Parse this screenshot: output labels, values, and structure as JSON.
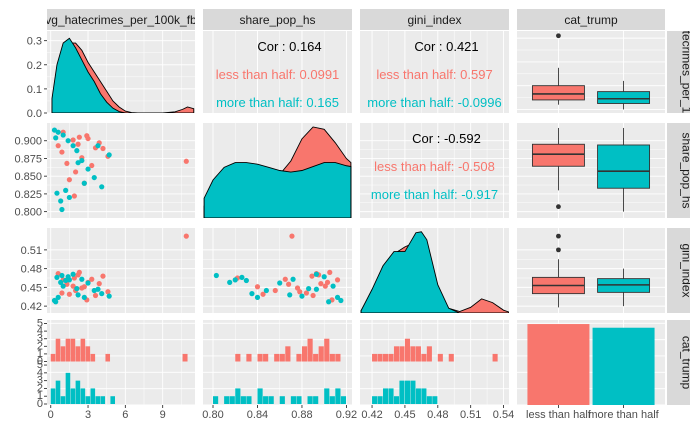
{
  "colors": {
    "less": "#F8766D",
    "more": "#00BFC4",
    "panel_bg": "#EBEBEB",
    "strip_bg": "#D9D9D9",
    "grid": "#FFFFFF"
  },
  "chart_data": {
    "type": "pairs",
    "variables": [
      "avg_hatecrimes_per_100k_fbi",
      "share_pop_hs",
      "gini_index",
      "cat_trump"
    ],
    "strip_labels": {
      "top": [
        "vg_hatecrimes_per_100k_fb",
        "share_pop_hs",
        "gini_index",
        "cat_trump"
      ],
      "right": [
        "tecrimes_per_1",
        "share_pop_hs",
        "gini_index",
        "cat_trump"
      ]
    },
    "groups": [
      "less than half",
      "more than half"
    ],
    "axes": {
      "hate": {
        "range": [
          -0.3,
          11.6
        ],
        "ticks": [
          0,
          3,
          6,
          9
        ],
        "ticklabels": [
          "0",
          "3",
          "6",
          "9"
        ]
      },
      "hs": {
        "range": [
          0.791,
          0.925
        ],
        "ticks": [
          0.8,
          0.84,
          0.88,
          0.92
        ],
        "ticklabels": [
          "0.80",
          "0.84",
          "0.88",
          "0.92"
        ],
        "yticks": [
          0.8,
          0.825,
          0.85,
          0.875,
          0.9
        ],
        "yticklabels": [
          "0.800",
          "0.825",
          "0.850",
          "0.875",
          "0.900"
        ]
      },
      "gini": {
        "range": [
          0.409,
          0.545
        ],
        "ticks": [
          0.42,
          0.45,
          0.48,
          0.51,
          0.54
        ],
        "ticklabels": [
          "0.42",
          "0.45",
          "0.48",
          "0.51",
          "0.54"
        ],
        "yticks": [
          0.42,
          0.45,
          0.48,
          0.51
        ],
        "yticklabels": [
          "0.42",
          "0.45",
          "0.48",
          "0.51"
        ]
      },
      "density_hate": {
        "range": [
          0,
          0.34
        ],
        "ticks": [
          0,
          0.1,
          0.2,
          0.3
        ],
        "ticklabels": [
          "0.0",
          "0.1",
          "0.2",
          "0.3"
        ]
      },
      "count": {
        "range": [
          0,
          5.2
        ],
        "ticks": [
          0,
          1,
          2,
          3,
          4,
          5
        ],
        "ticklabels": [
          "0",
          "1",
          "2",
          "3",
          "4",
          "5"
        ]
      }
    },
    "correlations": {
      "hate_hs": {
        "overall": "Cor : 0.164",
        "less": "less than half: 0.0991",
        "more": "more than half: 0.165"
      },
      "hate_gini": {
        "overall": "Cor : 0.421",
        "less": "less than half: 0.597",
        "more": "more than half: -0.0996"
      },
      "hs_gini": {
        "overall": "Cor : -0.592",
        "less": "less than half: -0.508",
        "more": "more than half: -0.917"
      }
    },
    "density": {
      "hate": {
        "less": {
          "x": [
            0.1,
            0.5,
            1.0,
            1.5,
            2.0,
            2.5,
            3.0,
            3.5,
            4.0,
            4.5,
            5.0,
            5.5,
            6.0,
            6.5,
            7.0,
            8.0,
            9.0,
            10.0,
            10.6,
            11.0,
            11.5
          ],
          "y": [
            0.02,
            0.12,
            0.23,
            0.29,
            0.29,
            0.26,
            0.21,
            0.17,
            0.13,
            0.09,
            0.05,
            0.025,
            0.008,
            0.002,
            0.0,
            0.0,
            0.0,
            0.005,
            0.015,
            0.025,
            0.018
          ]
        },
        "more": {
          "x": [
            0.1,
            0.5,
            1.0,
            1.5,
            2.0,
            2.5,
            3.0,
            3.5,
            4.0,
            4.5,
            5.0,
            5.5,
            6.0,
            6.5,
            7.0,
            8.0,
            9.0,
            10.0,
            10.6,
            11.0,
            11.5
          ],
          "y": [
            0.06,
            0.2,
            0.29,
            0.31,
            0.27,
            0.22,
            0.17,
            0.13,
            0.08,
            0.045,
            0.02,
            0.006,
            0.0,
            0.0,
            0.0,
            0.0,
            0.0,
            0.0,
            0.0,
            0.0,
            0.0
          ]
        }
      },
      "hs": {
        "less": {
          "x": [
            0.792,
            0.8,
            0.81,
            0.82,
            0.83,
            0.84,
            0.85,
            0.86,
            0.87,
            0.88,
            0.89,
            0.9,
            0.91,
            0.92,
            0.924
          ],
          "y": [
            0.15,
            0.35,
            0.55,
            0.62,
            0.6,
            0.55,
            0.52,
            0.55,
            0.72,
            1.0,
            1.15,
            1.12,
            0.95,
            0.75,
            0.7
          ]
        },
        "more": {
          "x": [
            0.792,
            0.8,
            0.81,
            0.82,
            0.83,
            0.84,
            0.85,
            0.86,
            0.87,
            0.88,
            0.89,
            0.9,
            0.91,
            0.92,
            0.924
          ],
          "y": [
            0.25,
            0.48,
            0.64,
            0.7,
            0.7,
            0.68,
            0.64,
            0.6,
            0.58,
            0.6,
            0.65,
            0.7,
            0.7,
            0.66,
            0.65
          ]
        }
      },
      "gini": {
        "less": {
          "x": [
            0.41,
            0.42,
            0.43,
            0.44,
            0.45,
            0.455,
            0.46,
            0.465,
            0.47,
            0.48,
            0.49,
            0.5,
            0.51,
            0.52,
            0.53,
            0.54,
            0.545
          ],
          "y": [
            0.05,
            0.45,
            0.9,
            1.25,
            1.4,
            1.45,
            1.4,
            1.25,
            1.0,
            0.45,
            0.1,
            0.03,
            0.12,
            0.3,
            0.22,
            0.06,
            0.02
          ]
        },
        "more": {
          "x": [
            0.41,
            0.42,
            0.43,
            0.44,
            0.45,
            0.455,
            0.46,
            0.465,
            0.47,
            0.48,
            0.49,
            0.5,
            0.51,
            0.52,
            0.53,
            0.54,
            0.545
          ],
          "y": [
            0.05,
            0.5,
            1.0,
            1.3,
            1.3,
            1.5,
            1.7,
            1.72,
            1.55,
            0.6,
            0.1,
            0.0,
            0.0,
            0.0,
            0.0,
            0.0,
            0.0
          ]
        }
      },
      "max": {
        "hs": 1.2,
        "gini": 1.8
      }
    },
    "scatter": {
      "less": {
        "hate": [
          1.0,
          1.8,
          2.2,
          0.9,
          3.0,
          3.6,
          2.5,
          1.3,
          4.2,
          2.9,
          2.0,
          1.5,
          3.3,
          2.7,
          0.6,
          1.9,
          4.6,
          3.9,
          2.3,
          10.9
        ],
        "hs": [
          0.912,
          0.901,
          0.895,
          0.884,
          0.903,
          0.89,
          0.876,
          0.868,
          0.889,
          0.907,
          0.856,
          0.845,
          0.865,
          0.84,
          0.893,
          0.822,
          0.878,
          0.897,
          0.905,
          0.871
        ],
        "gini": [
          0.462,
          0.452,
          0.47,
          0.441,
          0.458,
          0.437,
          0.449,
          0.455,
          0.468,
          0.43,
          0.445,
          0.439,
          0.463,
          0.451,
          0.472,
          0.465,
          0.443,
          0.456,
          0.474,
          0.532
        ]
      },
      "more": {
        "hate": [
          0.3,
          0.6,
          1.0,
          1.4,
          1.8,
          2.1,
          2.5,
          3.0,
          3.5,
          4.1,
          0.5,
          1.2,
          0.8,
          2.7,
          0.9,
          1.5,
          4.7,
          0.4,
          2.2,
          3.8
        ],
        "hs": [
          0.915,
          0.912,
          0.908,
          0.9,
          0.893,
          0.886,
          0.872,
          0.86,
          0.848,
          0.835,
          0.826,
          0.83,
          0.815,
          0.84,
          0.803,
          0.82,
          0.88,
          0.904,
          0.869,
          0.893
        ],
        "gini": [
          0.429,
          0.434,
          0.452,
          0.467,
          0.471,
          0.448,
          0.463,
          0.457,
          0.445,
          0.44,
          0.466,
          0.461,
          0.458,
          0.434,
          0.469,
          0.462,
          0.436,
          0.427,
          0.438,
          0.447
        ]
      }
    },
    "boxplots": {
      "hate": {
        "less": {
          "min": 0.02,
          "q1": 0.04,
          "median": 0.065,
          "q3": 0.1,
          "max": 0.175,
          "outliers": [
            0.31
          ]
        },
        "more": {
          "min": 0.0,
          "q1": 0.025,
          "median": 0.045,
          "q3": 0.075,
          "max": 0.12,
          "outliers": []
        }
      },
      "hs": {
        "less": {
          "min": 0.83,
          "q1": 0.864,
          "median": 0.881,
          "q3": 0.895,
          "max": 0.918,
          "outliers": [
            0.807
          ]
        },
        "more": {
          "min": 0.8,
          "q1": 0.833,
          "median": 0.857,
          "q3": 0.894,
          "max": 0.918,
          "outliers": []
        }
      },
      "gini": {
        "less": {
          "min": 0.418,
          "q1": 0.44,
          "median": 0.453,
          "q3": 0.466,
          "max": 0.495,
          "outliers": [
            0.51,
            0.532
          ]
        },
        "more": {
          "min": 0.42,
          "q1": 0.442,
          "median": 0.454,
          "q3": 0.464,
          "max": 0.48,
          "outliers": []
        }
      }
    },
    "bars": {
      "cat_trump": {
        "less": 22,
        "more": 21
      }
    },
    "histograms": {
      "hate": {
        "bins": [
          0,
          0.4,
          0.8,
          1.2,
          1.6,
          2.0,
          2.4,
          2.8,
          3.2,
          3.6,
          4.0,
          4.4,
          4.8,
          5.2
        ],
        "less": [
          1,
          3,
          2,
          3,
          3,
          2,
          3,
          2,
          1,
          0,
          0,
          1,
          0,
          0
        ],
        "more": [
          2,
          3,
          1,
          4,
          2,
          3,
          2,
          1,
          2,
          1,
          1,
          0,
          1,
          0
        ],
        "extra_less": [
          {
            "x": 10.6,
            "count": 1
          }
        ]
      },
      "hs": {
        "bins": [
          0.8,
          0.805,
          0.81,
          0.815,
          0.82,
          0.825,
          0.83,
          0.835,
          0.84,
          0.845,
          0.85,
          0.855,
          0.86,
          0.865,
          0.87,
          0.875,
          0.88,
          0.885,
          0.89,
          0.895,
          0.9,
          0.905,
          0.91,
          0.915
        ],
        "less": [
          0,
          0,
          0,
          0,
          1,
          0,
          1,
          0,
          1,
          1,
          0,
          1,
          1,
          2,
          0,
          1,
          2,
          3,
          1,
          2,
          3,
          1,
          1,
          0
        ],
        "more": [
          1,
          0,
          1,
          1,
          2,
          1,
          1,
          0,
          2,
          1,
          1,
          0,
          1,
          0,
          1,
          1,
          0,
          1,
          1,
          0,
          2,
          1,
          2,
          1
        ]
      },
      "gini": {
        "bins": [
          0.42,
          0.425,
          0.43,
          0.435,
          0.44,
          0.445,
          0.45,
          0.455,
          0.46,
          0.465,
          0.47,
          0.475,
          0.48,
          0.485,
          0.49,
          0.495,
          0.5,
          0.505,
          0.51,
          0.515,
          0.52,
          0.525,
          0.53
        ],
        "less": [
          1,
          1,
          1,
          1,
          2,
          2,
          3,
          2,
          2,
          1,
          2,
          0,
          1,
          0,
          1,
          0,
          0,
          0,
          0,
          0,
          0,
          0,
          1
        ],
        "more": [
          1,
          1,
          2,
          2,
          1,
          3,
          3,
          3,
          2,
          2,
          1,
          1,
          0,
          0,
          0,
          0,
          0,
          0,
          0,
          0,
          0,
          0,
          0
        ]
      }
    }
  }
}
